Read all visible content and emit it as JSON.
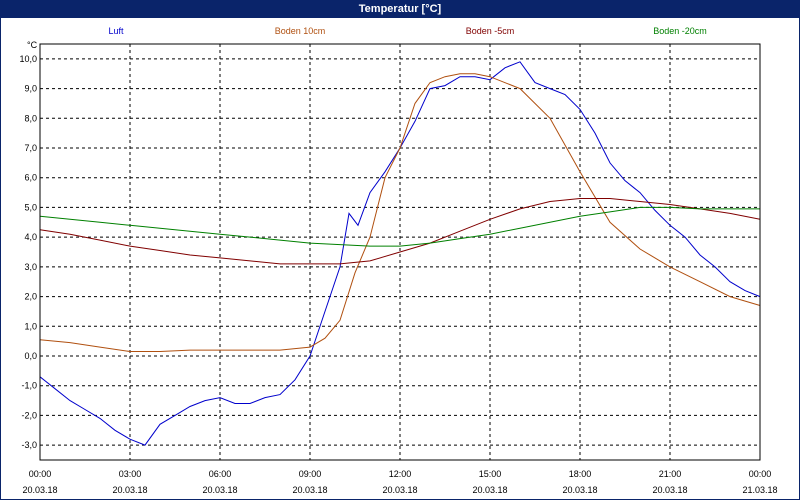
{
  "window": {
    "title": "Temperatur [°C]"
  },
  "chart_data": {
    "type": "line",
    "ylabel": "°C",
    "ylim": [
      -3.5,
      10.5
    ],
    "y_ticks": [
      "10,0",
      "9,0",
      "8,0",
      "7,0",
      "6,0",
      "5,0",
      "4,0",
      "3,0",
      "2,0",
      "1,0",
      "0,0",
      "-1,0",
      "-2,0",
      "-3,0"
    ],
    "x_range": [
      0,
      24
    ],
    "x_ticks": [
      {
        "time": "00:00",
        "date": "20.03.18"
      },
      {
        "time": "03:00",
        "date": "20.03.18"
      },
      {
        "time": "06:00",
        "date": "20.03.18"
      },
      {
        "time": "09:00",
        "date": "20.03.18"
      },
      {
        "time": "12:00",
        "date": "20.03.18"
      },
      {
        "time": "15:00",
        "date": "20.03.18"
      },
      {
        "time": "18:00",
        "date": "20.03.18"
      },
      {
        "time": "21:00",
        "date": "20.03.18"
      },
      {
        "time": "00:00",
        "date": "21.03.18"
      }
    ],
    "grid": true,
    "legend_position": "top",
    "series": [
      {
        "name": "Luft",
        "color": "#0000cc",
        "x": [
          0,
          0.5,
          1,
          1.5,
          2,
          2.5,
          3,
          3.5,
          4,
          4.5,
          5,
          5.5,
          6,
          6.5,
          7,
          7.5,
          8,
          8.5,
          9,
          9.5,
          10,
          10.3,
          10.6,
          11,
          11.5,
          12,
          12.5,
          13,
          13.5,
          14,
          14.5,
          15,
          15.5,
          16,
          16.5,
          17,
          17.5,
          18,
          18.5,
          19,
          19.5,
          20,
          20.5,
          21,
          21.5,
          22,
          22.5,
          23,
          23.5,
          24
        ],
        "values": [
          -0.7,
          -1.1,
          -1.5,
          -1.8,
          -2.1,
          -2.5,
          -2.8,
          -3.0,
          -2.3,
          -2.0,
          -1.7,
          -1.5,
          -1.4,
          -1.6,
          -1.6,
          -1.4,
          -1.3,
          -0.8,
          0.0,
          1.5,
          3.0,
          4.8,
          4.4,
          5.5,
          6.2,
          7.0,
          7.9,
          9.0,
          9.1,
          9.4,
          9.4,
          9.3,
          9.7,
          9.9,
          9.2,
          9.0,
          8.8,
          8.3,
          7.5,
          6.5,
          5.9,
          5.5,
          4.9,
          4.4,
          4.0,
          3.4,
          3.0,
          2.5,
          2.2,
          2.0
        ]
      },
      {
        "name": "Boden 10cm",
        "color": "#b05010",
        "x": [
          0,
          1,
          2,
          3,
          4,
          5,
          6,
          7,
          8,
          8.5,
          9,
          9.5,
          10,
          10.5,
          11,
          11.5,
          12,
          12.5,
          13,
          13.5,
          14,
          14.5,
          15,
          16,
          17,
          18,
          19,
          20,
          21,
          22,
          23,
          24
        ],
        "values": [
          0.55,
          0.45,
          0.3,
          0.15,
          0.15,
          0.2,
          0.2,
          0.2,
          0.2,
          0.25,
          0.3,
          0.6,
          1.2,
          2.8,
          4.0,
          6.0,
          7.0,
          8.5,
          9.2,
          9.4,
          9.5,
          9.5,
          9.4,
          9.0,
          8.0,
          6.2,
          4.5,
          3.6,
          3.0,
          2.5,
          2.0,
          1.7
        ]
      },
      {
        "name": "Boden -5cm",
        "color": "#800000",
        "x": [
          0,
          1,
          2,
          3,
          4,
          5,
          6,
          7,
          8,
          9,
          10,
          11,
          12,
          13,
          14,
          15,
          16,
          17,
          18,
          19,
          20,
          21,
          22,
          23,
          24
        ],
        "values": [
          4.25,
          4.1,
          3.9,
          3.7,
          3.55,
          3.4,
          3.3,
          3.2,
          3.1,
          3.1,
          3.1,
          3.2,
          3.5,
          3.8,
          4.2,
          4.6,
          4.95,
          5.2,
          5.3,
          5.3,
          5.2,
          5.1,
          4.95,
          4.8,
          4.6
        ]
      },
      {
        "name": "Boden -20cm",
        "color": "#008000",
        "x": [
          0,
          1,
          2,
          3,
          4,
          5,
          6,
          7,
          8,
          9,
          10,
          11,
          12,
          13,
          14,
          15,
          16,
          17,
          18,
          19,
          20,
          21,
          22,
          23,
          24
        ],
        "values": [
          4.7,
          4.6,
          4.5,
          4.4,
          4.3,
          4.2,
          4.1,
          4.0,
          3.9,
          3.8,
          3.75,
          3.7,
          3.7,
          3.8,
          3.95,
          4.1,
          4.3,
          4.5,
          4.7,
          4.85,
          5.0,
          5.0,
          4.95,
          4.95,
          4.95
        ]
      }
    ]
  }
}
